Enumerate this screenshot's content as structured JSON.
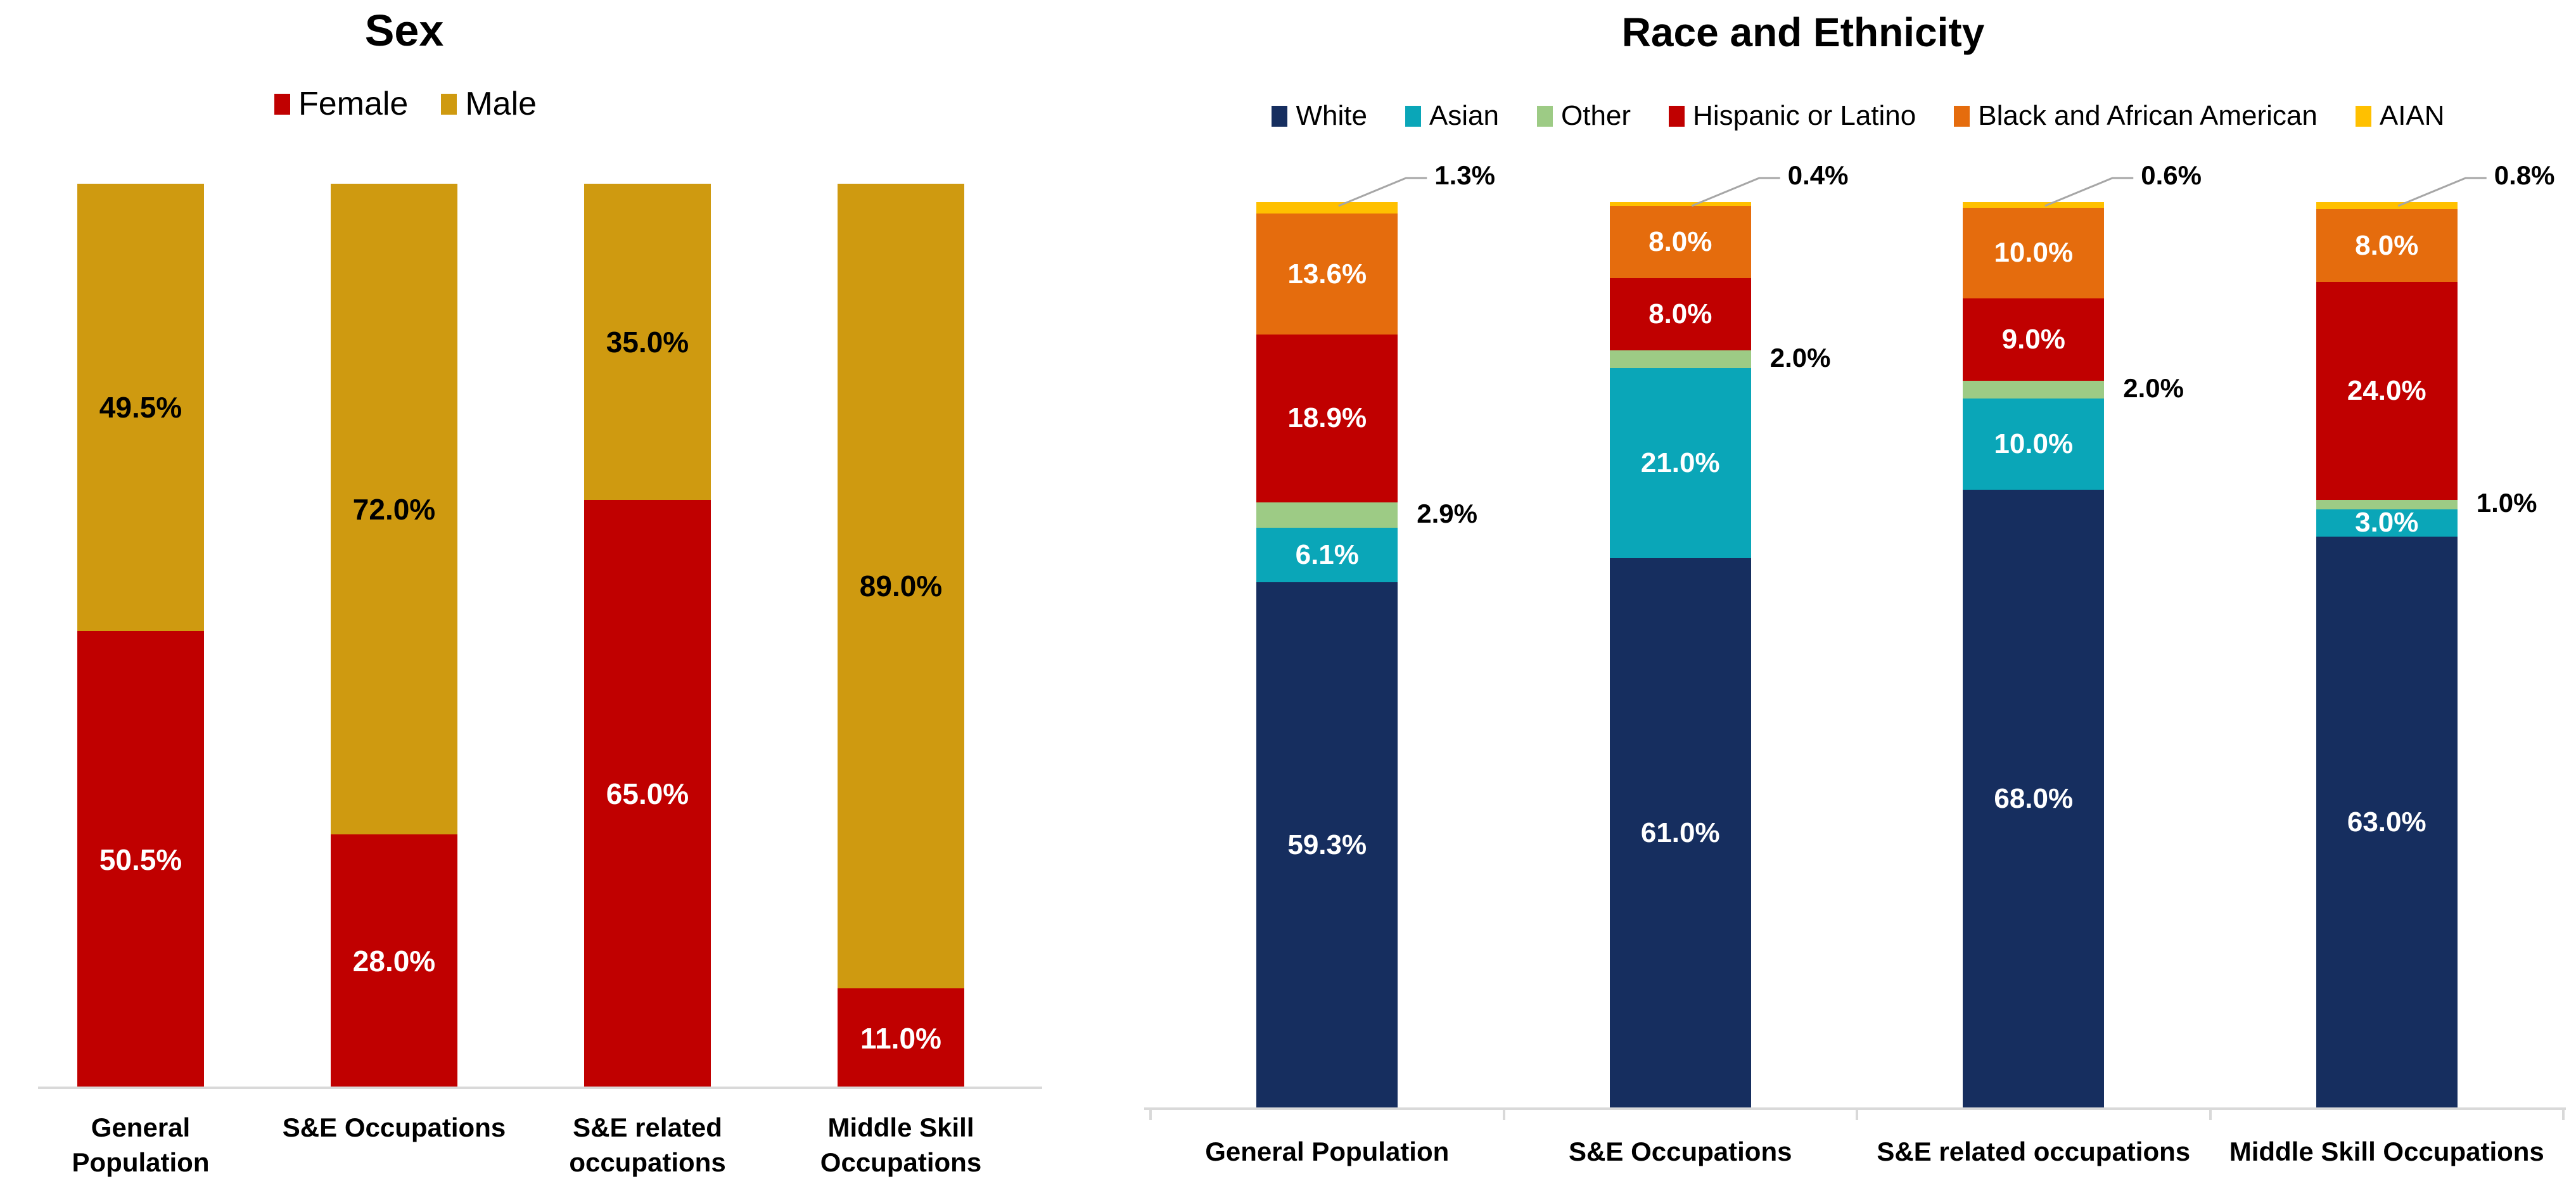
{
  "page": {
    "background": "#FFFFFF"
  },
  "chart_data": [
    {
      "id": "sex",
      "type": "bar",
      "stacked": true,
      "title": "Sex",
      "categories": [
        "General Population",
        "S&E Occupations",
        "S&E related occupations",
        "Middle Skill Occupations"
      ],
      "category_lines": [
        [
          "General",
          "Population"
        ],
        [
          "S&E Occupations"
        ],
        [
          "S&E related",
          "occupations"
        ],
        [
          "Middle Skill",
          "Occupations"
        ]
      ],
      "series": [
        {
          "name": "Female",
          "color": "#C00000",
          "label_color": "#FFFFFF",
          "label_mode": "inside",
          "values": [
            50.5,
            28.0,
            65.0,
            11.0
          ]
        },
        {
          "name": "Male",
          "color": "#CF9A10",
          "label_color": "#000000",
          "label_mode": "inside",
          "values": [
            49.5,
            72.0,
            35.0,
            89.0
          ]
        }
      ],
      "ylim": [
        0,
        100
      ],
      "value_format": "percent-1dp",
      "legend_position": "top",
      "gridlines": false,
      "axis": {
        "baseline_color": "#D9D9D9",
        "tick_marks": false
      }
    },
    {
      "id": "race",
      "type": "bar",
      "stacked": true,
      "title": "Race and Ethnicity",
      "categories": [
        "General Population",
        "S&E Occupations",
        "S&E related occupations",
        "Middle Skill Occupations"
      ],
      "category_lines": [
        [
          "General Population"
        ],
        [
          "S&E Occupations"
        ],
        [
          "S&E related occupations"
        ],
        [
          "Middle Skill Occupations"
        ]
      ],
      "series": [
        {
          "name": "White",
          "color": "#162E5F",
          "label_color": "#FFFFFF",
          "label_mode": "inside",
          "values": [
            59.3,
            61.0,
            68.0,
            63.0
          ]
        },
        {
          "name": "Asian",
          "color": "#0AA6B8",
          "label_color": "#FFFFFF",
          "label_mode": "inside",
          "values": [
            6.1,
            21.0,
            10.0,
            3.0
          ]
        },
        {
          "name": "Other",
          "color": "#9DCB85",
          "label_color": "#000000",
          "label_mode": "side",
          "values": [
            2.9,
            2.0,
            2.0,
            1.0
          ]
        },
        {
          "name": "Hispanic or Latino",
          "color": "#C00000",
          "label_color": "#FFFFFF",
          "label_mode": "inside",
          "values": [
            18.9,
            8.0,
            9.0,
            24.0
          ]
        },
        {
          "name": "Black and African American",
          "color": "#E56C0D",
          "label_color": "#FFFFFF",
          "label_mode": "inside",
          "values": [
            13.6,
            8.0,
            10.0,
            8.0
          ]
        },
        {
          "name": "AIAN",
          "color": "#FFC000",
          "label_color": "#000000",
          "label_mode": "callout",
          "values": [
            1.3,
            0.4,
            0.6,
            0.8
          ]
        }
      ],
      "ylim": [
        0,
        100
      ],
      "value_format": "percent-1dp",
      "legend_position": "top",
      "gridlines": false,
      "axis": {
        "baseline_color": "#D9D9D9",
        "tick_marks": true,
        "leader_line_color": "#A6A6A6"
      }
    }
  ]
}
